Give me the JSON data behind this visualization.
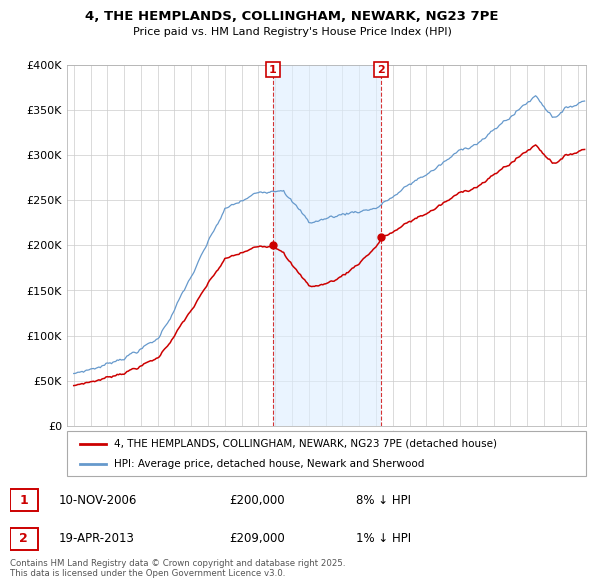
{
  "title": "4, THE HEMPLANDS, COLLINGHAM, NEWARK, NG23 7PE",
  "subtitle": "Price paid vs. HM Land Registry's House Price Index (HPI)",
  "legend_line1": "4, THE HEMPLANDS, COLLINGHAM, NEWARK, NG23 7PE (detached house)",
  "legend_line2": "HPI: Average price, detached house, Newark and Sherwood",
  "footnote": "Contains HM Land Registry data © Crown copyright and database right 2025.\nThis data is licensed under the Open Government Licence v3.0.",
  "sale1_date": "10-NOV-2006",
  "sale1_price": "£200,000",
  "sale1_hpi": "8% ↓ HPI",
  "sale2_date": "19-APR-2013",
  "sale2_price": "£209,000",
  "sale2_hpi": "1% ↓ HPI",
  "sale1_year": 2006.86,
  "sale2_year": 2013.3,
  "red_color": "#cc0000",
  "blue_color": "#6699cc",
  "shade_color": "#ddeeff",
  "grid_color": "#cccccc",
  "ylim_min": 0,
  "ylim_max": 400000,
  "xmin": 1994.6,
  "xmax": 2025.5,
  "yticks": [
    0,
    50000,
    100000,
    150000,
    200000,
    250000,
    300000,
    350000,
    400000
  ]
}
